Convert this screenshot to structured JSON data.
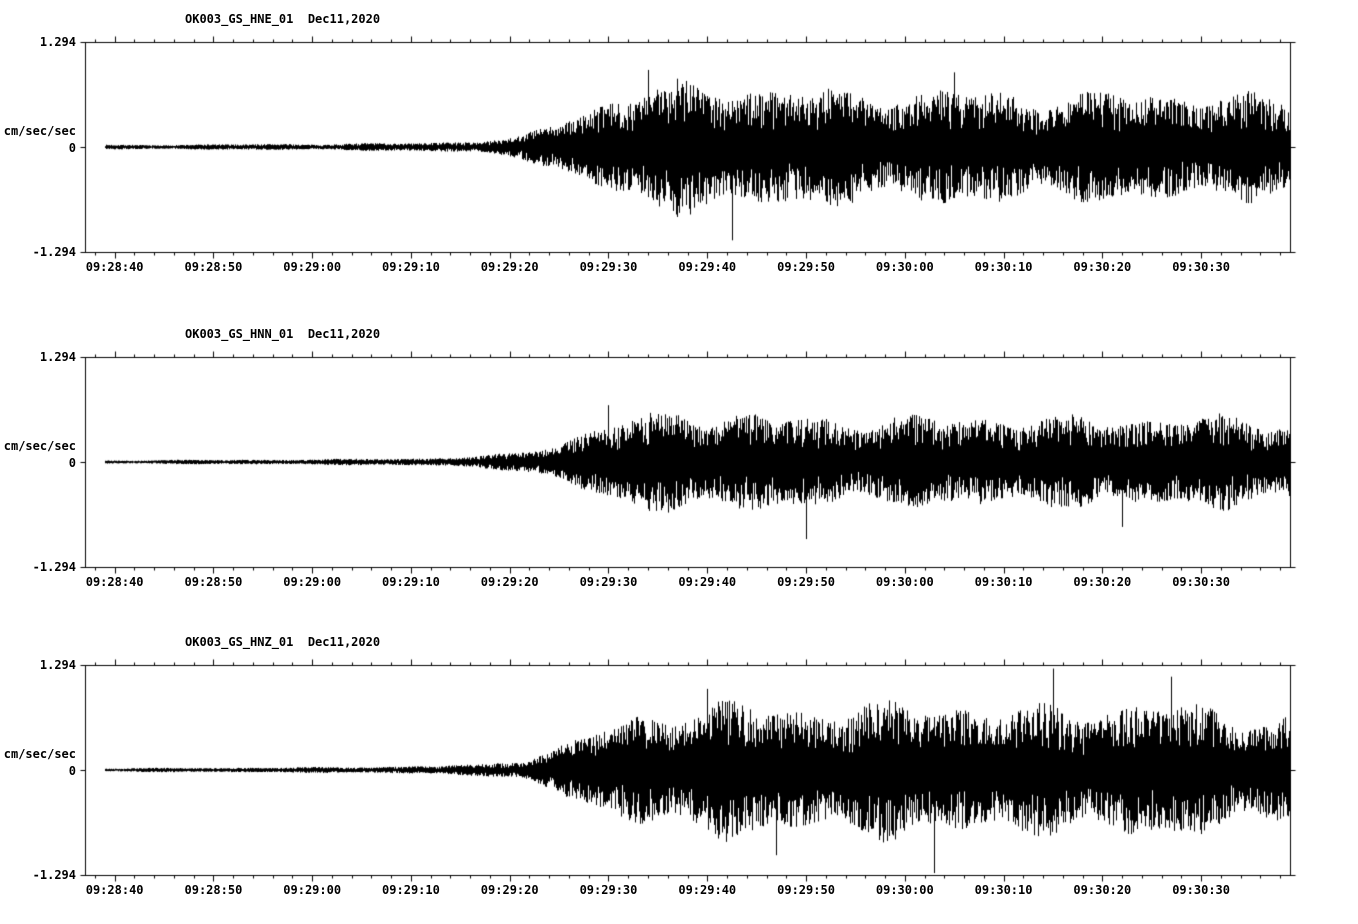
{
  "page": {
    "background": "#ffffff",
    "trace_color": "#000000",
    "text_color": "#000000"
  },
  "chart_data": [
    {
      "type": "line",
      "title": "OK003_GS_HNE_01  Dec11,2020",
      "ylabel": "cm/sec/sec",
      "ylim": [
        -1.294,
        1.294
      ],
      "ytick_labels": [
        "1.294",
        "0",
        "-1.294"
      ],
      "xtick_labels": [
        "09:28:40",
        "09:28:50",
        "09:29:00",
        "09:29:10",
        "09:29:20",
        "09:29:30",
        "09:29:40",
        "09:29:50",
        "09:30:00",
        "09:30:10",
        "09:30:20",
        "09:30:30"
      ],
      "time_window": {
        "start": "09:28:37",
        "end": "09:30:39",
        "duration_s": 122,
        "first_tick_offset_s": 3,
        "major_tick_s": 10,
        "minor_tick_s": 2,
        "trace_start_s": 2
      },
      "envelope": {
        "t_s": [
          2,
          10,
          25,
          35,
          40,
          44,
          47,
          50,
          53,
          56,
          60,
          65,
          70,
          78,
          88,
          98,
          108,
          116,
          122
        ],
        "amp": [
          0.03,
          0.035,
          0.045,
          0.06,
          0.09,
          0.14,
          0.3,
          0.5,
          0.65,
          0.8,
          0.9,
          0.88,
          0.82,
          0.76,
          0.78,
          0.72,
          0.76,
          0.72,
          0.68
        ]
      },
      "spikes": [
        {
          "t_s": 65.5,
          "value": -1.15
        },
        {
          "t_s": 57.0,
          "value": 0.95
        },
        {
          "t_s": 88.0,
          "value": 0.92
        }
      ],
      "seed": 7
    },
    {
      "type": "line",
      "title": "OK003_GS_HNN_01  Dec11,2020",
      "ylabel": "cm/sec/sec",
      "ylim": [
        -1.294,
        1.294
      ],
      "ytick_labels": [
        "1.294",
        "0",
        "-1.294"
      ],
      "xtick_labels": [
        "09:28:40",
        "09:28:50",
        "09:29:00",
        "09:29:10",
        "09:29:20",
        "09:29:30",
        "09:29:40",
        "09:29:50",
        "09:30:00",
        "09:30:10",
        "09:30:20",
        "09:30:30"
      ],
      "time_window": {
        "start": "09:28:37",
        "end": "09:30:39",
        "duration_s": 122,
        "first_tick_offset_s": 3,
        "major_tick_s": 10,
        "minor_tick_s": 2,
        "trace_start_s": 2
      },
      "envelope": {
        "t_s": [
          2,
          10,
          25,
          35,
          40,
          44,
          48,
          52,
          56,
          60,
          66,
          72,
          80,
          90,
          100,
          110,
          118,
          122
        ],
        "amp": [
          0.025,
          0.03,
          0.04,
          0.055,
          0.08,
          0.13,
          0.28,
          0.48,
          0.62,
          0.72,
          0.66,
          0.62,
          0.6,
          0.63,
          0.6,
          0.63,
          0.6,
          0.58
        ]
      },
      "spikes": [
        {
          "t_s": 53.0,
          "value": 0.7
        },
        {
          "t_s": 73.0,
          "value": -0.95
        },
        {
          "t_s": 105.0,
          "value": -0.8
        }
      ],
      "seed": 21
    },
    {
      "type": "line",
      "title": "OK003_GS_HNZ_01  Dec11,2020",
      "ylabel": "cm/sec/sec",
      "ylim": [
        -1.294,
        1.294
      ],
      "ytick_labels": [
        "1.294",
        "0",
        "-1.294"
      ],
      "xtick_labels": [
        "09:28:40",
        "09:28:50",
        "09:29:00",
        "09:29:10",
        "09:29:20",
        "09:29:30",
        "09:29:40",
        "09:29:50",
        "09:30:00",
        "09:30:10",
        "09:30:20",
        "09:30:30"
      ],
      "time_window": {
        "start": "09:28:37",
        "end": "09:30:39",
        "duration_s": 122,
        "first_tick_offset_s": 3,
        "major_tick_s": 10,
        "minor_tick_s": 2,
        "trace_start_s": 2
      },
      "envelope": {
        "t_s": [
          2,
          10,
          25,
          35,
          40,
          44,
          48,
          52,
          56,
          61,
          66,
          72,
          79,
          86,
          93,
          100,
          107,
          114,
          120,
          122
        ],
        "amp": [
          0.025,
          0.03,
          0.04,
          0.055,
          0.08,
          0.14,
          0.32,
          0.55,
          0.75,
          0.88,
          0.92,
          0.85,
          0.88,
          0.95,
          0.82,
          0.88,
          0.92,
          0.85,
          0.75,
          0.7
        ]
      },
      "spikes": [
        {
          "t_s": 63.0,
          "value": 1.0
        },
        {
          "t_s": 70.0,
          "value": -1.05
        },
        {
          "t_s": 86.0,
          "value": -1.27
        },
        {
          "t_s": 98.0,
          "value": 1.25
        },
        {
          "t_s": 110.0,
          "value": 1.15
        }
      ],
      "seed": 42
    }
  ]
}
